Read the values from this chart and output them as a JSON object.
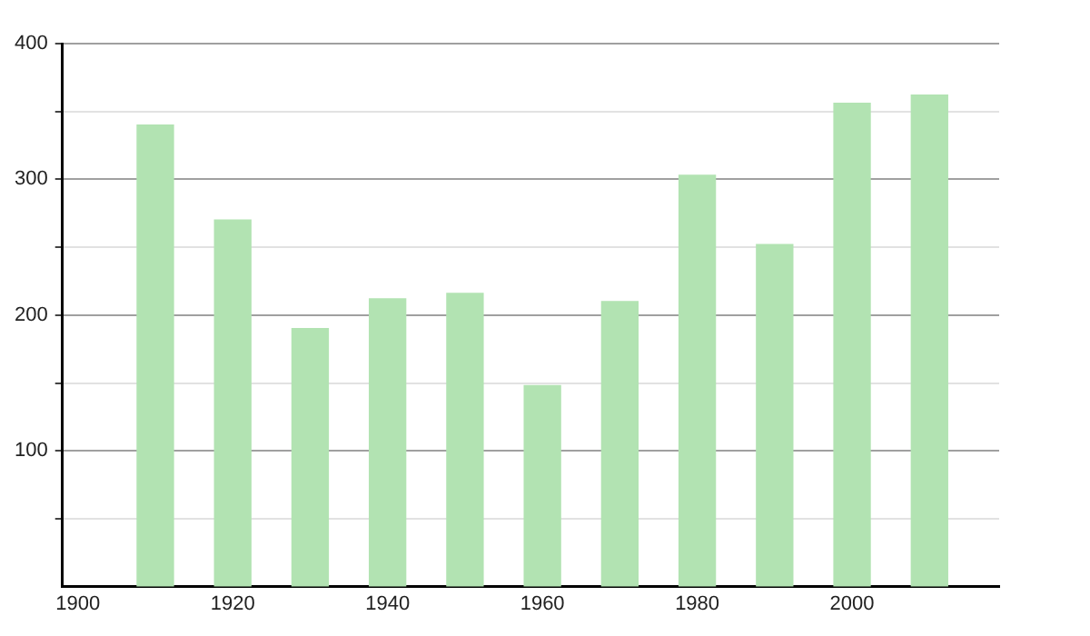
{
  "chart_data": {
    "type": "bar",
    "x": [
      1910,
      1920,
      1930,
      1940,
      1950,
      1960,
      1970,
      1980,
      1990,
      2000,
      2010
    ],
    "values": [
      340,
      270,
      190,
      212,
      216,
      148,
      210,
      303,
      252,
      356,
      362
    ],
    "color": "#b2e3b2",
    "xlim": [
      1898,
      2019
    ],
    "xticks": [
      1900,
      1920,
      1940,
      1960,
      1980,
      2000
    ],
    "ylim": [
      0,
      400
    ],
    "yticks": [
      {
        "value": 50,
        "label": null
      },
      100,
      {
        "value": 150,
        "label": null
      },
      200,
      {
        "value": 250,
        "label": null
      },
      300,
      {
        "value": 350,
        "label": null
      },
      400
    ],
    "grid": "y",
    "legend": false
  }
}
